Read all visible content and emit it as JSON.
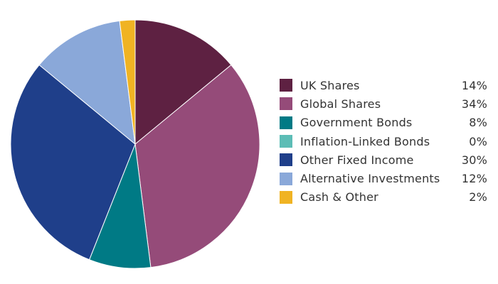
{
  "chart_data": {
    "type": "pie",
    "title": "",
    "slices": [
      {
        "label": "UK Shares",
        "value": 14,
        "display": "14%",
        "color": "#5e2142"
      },
      {
        "label": "Global Shares",
        "value": 34,
        "display": "34%",
        "color": "#954b79"
      },
      {
        "label": "Government Bonds",
        "value": 8,
        "display": "8%",
        "color": "#007a85"
      },
      {
        "label": "Inflation-Linked Bonds",
        "value": 0,
        "display": "0%",
        "color": "#5cbdb6"
      },
      {
        "label": "Other Fixed Income",
        "value": 30,
        "display": "30%",
        "color": "#1f3f8a"
      },
      {
        "label": "Alternative Investments",
        "value": 12,
        "display": "12%",
        "color": "#8aa8d9"
      },
      {
        "label": "Cash & Other",
        "value": 2,
        "display": "2%",
        "color": "#f0b323"
      }
    ],
    "legend_position": "right"
  }
}
